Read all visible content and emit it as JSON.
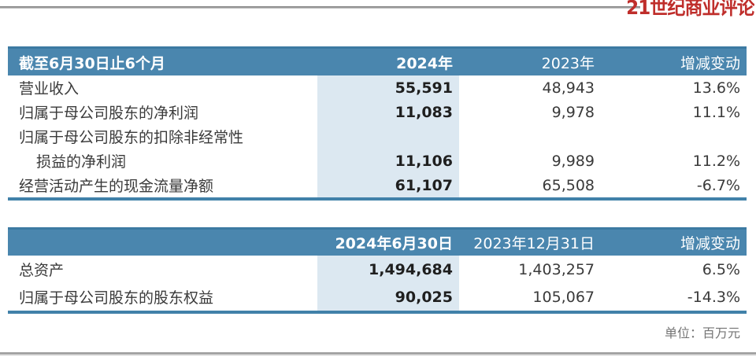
{
  "page": {
    "logo_text": "21世纪商业评论",
    "unit_note": "单位：百万元"
  },
  "colors": {
    "header_blue": "#4a86ae",
    "band_blue": "#dce8f1",
    "border_blue": "#4181a9",
    "logo_red": "#bf2e2b"
  },
  "table1": {
    "header": {
      "col1": "截至6月30日止6个月",
      "col2": "2024年",
      "col3": "2023年",
      "col4": "增减变动"
    },
    "rows": [
      {
        "label": "营业收入",
        "v2024": "55,591",
        "v2023": "48,943",
        "change": "13.6%"
      },
      {
        "label": "归属于母公司股东的净利润",
        "v2024": "11,083",
        "v2023": "9,978",
        "change": "11.1%"
      },
      {
        "label": "归属于母公司股东的扣除非经常性",
        "v2024": "",
        "v2023": "",
        "change": ""
      },
      {
        "label": "损益的净利润",
        "v2024": "11,106",
        "v2023": "9,989",
        "change": "11.2%"
      },
      {
        "label": "经营活动产生的现金流量净额",
        "v2024": "61,107",
        "v2023": "65,508",
        "change": "-6.7%"
      }
    ]
  },
  "table2": {
    "header": {
      "col1": "",
      "col2": "2024年6月30日",
      "col3": "2023年12月31日",
      "col4": "增减变动"
    },
    "rows": [
      {
        "label": "总资产",
        "v2024": "1,494,684",
        "v2023": "1,403,257",
        "change": "6.5%"
      },
      {
        "label": "归属于母公司股东的股东权益",
        "v2024": "90,025",
        "v2023": "105,067",
        "change": "-14.3%"
      }
    ]
  }
}
